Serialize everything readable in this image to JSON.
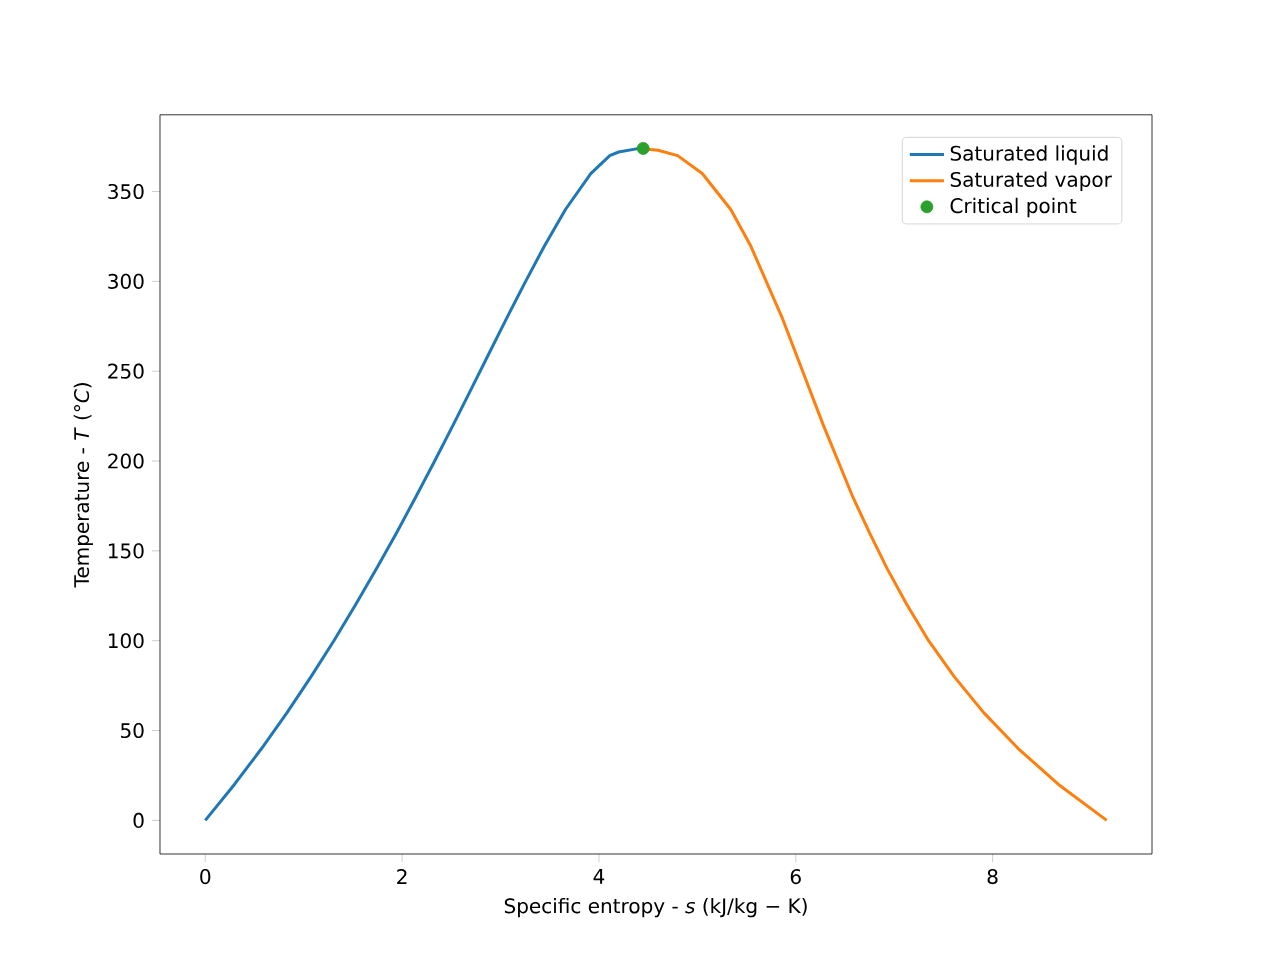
{
  "chart_data": {
    "type": "line",
    "xlabel": "Specific entropy - *s* (kJ/kg − K)",
    "ylabel": "Temperature - *T* (°*C*)",
    "xlim": [
      -0.46,
      9.62
    ],
    "ylim": [
      -18.7,
      392.7
    ],
    "xticks": [
      0,
      2,
      4,
      6,
      8
    ],
    "yticks": [
      0,
      50,
      100,
      150,
      200,
      250,
      300,
      350
    ],
    "legend": "top right",
    "grid": false,
    "series": [
      {
        "name": "Saturated liquid",
        "color": "#1f77b4",
        "type": "line",
        "marker": "none",
        "x": [
          0,
          0.296,
          0.572,
          0.831,
          1.075,
          1.307,
          1.527,
          1.739,
          1.943,
          2.139,
          2.331,
          2.518,
          2.702,
          2.884,
          3.067,
          3.255,
          3.449,
          3.66,
          3.917,
          4.11,
          4.2,
          4.41
        ],
        "values": [
          0,
          20,
          40,
          60,
          80,
          100,
          120,
          140,
          160,
          180,
          200,
          220,
          240,
          260,
          280,
          300,
          320,
          340,
          360,
          370,
          372,
          374
        ]
      },
      {
        "name": "Saturated vapor",
        "color": "#ff7f0e",
        "type": "line",
        "marker": "none",
        "x": [
          4.41,
          4.6,
          4.8,
          5.05,
          5.34,
          5.54,
          5.7,
          5.86,
          6.0,
          6.14,
          6.28,
          6.43,
          6.58,
          6.75,
          6.93,
          7.13,
          7.35,
          7.61,
          7.91,
          8.26,
          8.67,
          9.16
        ],
        "values": [
          374,
          373,
          370,
          360,
          340,
          320,
          300,
          280,
          260,
          240,
          220,
          200,
          180,
          160,
          140,
          120,
          100,
          80,
          60,
          40,
          20,
          0
        ]
      },
      {
        "name": "Critical point",
        "color": "#2ca02c",
        "type": "scatter",
        "marker": "circle",
        "x": [
          4.45
        ],
        "values": [
          374
        ]
      }
    ]
  }
}
